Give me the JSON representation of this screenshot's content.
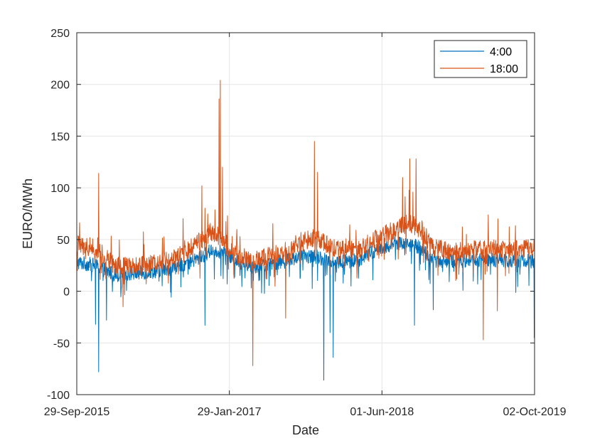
{
  "chart_data": {
    "type": "line",
    "title": "",
    "xlabel": "Date",
    "ylabel": "EURO/MWh",
    "ylim": [
      -100,
      250
    ],
    "yticks": [
      "-100",
      "-50",
      "0",
      "50",
      "100",
      "150",
      "200",
      "250"
    ],
    "yticks_values": [
      -100,
      -50,
      0,
      50,
      100,
      150,
      200,
      250
    ],
    "xlim": [
      "2015-09-29",
      "2019-10-02"
    ],
    "xticks": [
      "29-Sep-2015",
      "29-Jan-2017",
      "01-Jun-2018",
      "02-Oct-2019"
    ],
    "xticks_dates": [
      "2015-09-29",
      "2017-01-29",
      "2018-06-01",
      "2019-10-02"
    ],
    "grid": true,
    "legend_position": "top-right",
    "series": [
      {
        "name": "4:00",
        "color": "#0072BD",
        "keypoints_note": "daily values approximated from the plot",
        "profile": [
          [
            0,
            28
          ],
          [
            60,
            25
          ],
          [
            120,
            16
          ],
          [
            180,
            17
          ],
          [
            240,
            19
          ],
          [
            300,
            22
          ],
          [
            360,
            28
          ],
          [
            400,
            33
          ],
          [
            430,
            40
          ],
          [
            470,
            38
          ],
          [
            500,
            31
          ],
          [
            560,
            24
          ],
          [
            620,
            26
          ],
          [
            680,
            30
          ],
          [
            700,
            33
          ],
          [
            760,
            34
          ],
          [
            830,
            28
          ],
          [
            900,
            30
          ],
          [
            960,
            40
          ],
          [
            1020,
            47
          ],
          [
            1060,
            46
          ],
          [
            1100,
            42
          ],
          [
            1140,
            30
          ],
          [
            1200,
            29
          ],
          [
            1260,
            30
          ],
          [
            1464,
            29
          ]
        ],
        "spikes": [
          {
            "date_index": 70,
            "value": -78
          },
          {
            "date_index": 95,
            "value": -28
          },
          {
            "date_index": 60,
            "value": -32
          },
          {
            "date_index": 410,
            "value": -33
          },
          {
            "date_index": 790,
            "value": -86
          },
          {
            "date_index": 820,
            "value": -64
          },
          {
            "date_index": 810,
            "value": -40
          },
          {
            "date_index": 1080,
            "value": -33
          },
          {
            "date_index": 1140,
            "value": -18
          },
          {
            "date_index": 1463,
            "value": -45
          },
          {
            "date_index": 300,
            "value": -1
          }
        ]
      },
      {
        "name": "18:00",
        "color": "#D95319",
        "keypoints_note": "daily values approximated from the plot",
        "profile": [
          [
            0,
            45
          ],
          [
            60,
            42
          ],
          [
            120,
            25
          ],
          [
            180,
            23
          ],
          [
            240,
            27
          ],
          [
            300,
            30
          ],
          [
            350,
            38
          ],
          [
            390,
            48
          ],
          [
            430,
            58
          ],
          [
            470,
            50
          ],
          [
            500,
            36
          ],
          [
            560,
            30
          ],
          [
            620,
            35
          ],
          [
            680,
            38
          ],
          [
            700,
            45
          ],
          [
            760,
            52
          ],
          [
            830,
            40
          ],
          [
            900,
            40
          ],
          [
            960,
            52
          ],
          [
            1020,
            60
          ],
          [
            1060,
            66
          ],
          [
            1100,
            60
          ],
          [
            1140,
            42
          ],
          [
            1200,
            38
          ],
          [
            1260,
            40
          ],
          [
            1464,
            42
          ]
        ],
        "spikes": [
          {
            "date_index": 70,
            "value": 114
          },
          {
            "date_index": 400,
            "value": 102
          },
          {
            "date_index": 455,
            "value": 186
          },
          {
            "date_index": 459,
            "value": 204
          },
          {
            "date_index": 466,
            "value": 120
          },
          {
            "date_index": 760,
            "value": 145
          },
          {
            "date_index": 770,
            "value": 115
          },
          {
            "date_index": 1065,
            "value": 128
          },
          {
            "date_index": 1085,
            "value": 128
          },
          {
            "date_index": 1042,
            "value": 110
          },
          {
            "date_index": 563,
            "value": -72
          },
          {
            "date_index": 148,
            "value": -15
          },
          {
            "date_index": 668,
            "value": -26
          },
          {
            "date_index": 1300,
            "value": -47
          },
          {
            "date_index": 1345,
            "value": -19
          }
        ]
      }
    ]
  }
}
